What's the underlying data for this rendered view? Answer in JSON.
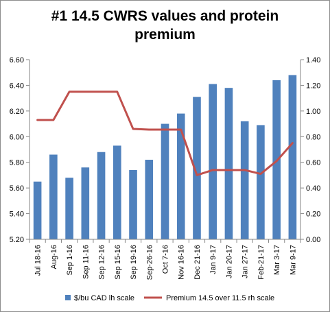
{
  "chart_data": {
    "type": "bar",
    "title_line1": "#1 14.5 CWRS values and protein",
    "title_line2": "premium",
    "categories": [
      "Jul 18-16",
      "Aug-16",
      "Sep 1-16",
      "Sep 11-16",
      "Sep 12-16",
      "Sep 15-16",
      "Sep 19-16",
      "Sep-26-16",
      "Oct 7-16",
      "Nov 16-16",
      "Dec 21-16",
      "Jan 9-17",
      "Jan 20-17",
      "Jan 27-17",
      "Feb-21-17",
      "Mar 3-17",
      "Mar 9-17"
    ],
    "series": [
      {
        "name": "$/bu CAD lh scale",
        "kind": "bar",
        "axis": "left",
        "color": "#4f81bd",
        "values": [
          5.65,
          5.86,
          5.68,
          5.76,
          5.88,
          5.93,
          5.74,
          5.82,
          6.1,
          6.18,
          6.31,
          6.41,
          6.38,
          6.12,
          6.09,
          6.44,
          6.48
        ]
      },
      {
        "name": "Premium 14.5 over 11.5 rh scale",
        "kind": "line",
        "axis": "right",
        "color": "#c0504d",
        "values": [
          0.93,
          0.93,
          1.15,
          1.15,
          1.15,
          1.15,
          0.86,
          0.855,
          0.855,
          0.855,
          0.5,
          0.54,
          0.54,
          0.54,
          0.51,
          0.61,
          0.75
        ]
      }
    ],
    "left_axis": {
      "ylim": [
        5.2,
        6.6
      ],
      "ticks": [
        "5.20",
        "5.40",
        "5.60",
        "5.80",
        "6.00",
        "6.20",
        "6.40",
        "6.60"
      ]
    },
    "right_axis": {
      "ylim": [
        0.0,
        1.4
      ],
      "ticks": [
        "0.00",
        "0.20",
        "0.40",
        "0.60",
        "0.80",
        "1.00",
        "1.20",
        "1.40"
      ]
    },
    "grid": false,
    "legend_position": "bottom"
  }
}
